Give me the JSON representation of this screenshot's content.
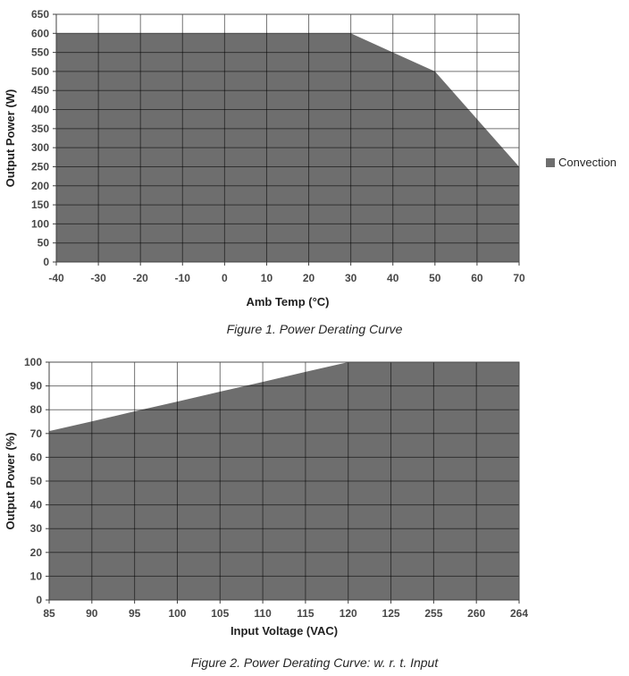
{
  "page": {
    "background": "#ffffff"
  },
  "figure1": {
    "caption": "Figure 1. Power Derating Curve",
    "legend_label": "Convection",
    "legend_swatch_color": "#6e6e6e"
  },
  "figure2": {
    "caption": "Figure 2. Power Derating Curve: w. r. t. Input"
  },
  "colors": {
    "area_fill": "#6e6e6e",
    "gridline": "rgba(0,0,0,0.55)",
    "plot_border": "#4d4d4d",
    "axis_line": "#404040",
    "tick_label": "#474747",
    "axis_title": "#1f1f1f",
    "caption_text": "#262626"
  },
  "chart_data": [
    {
      "type": "area",
      "title": "",
      "xlabel": "Amb Temp (°C)",
      "ylabel": "Output Power (W)",
      "categories": [
        -40,
        -30,
        -20,
        -10,
        0,
        10,
        20,
        30,
        40,
        50,
        60,
        70
      ],
      "series": [
        {
          "name": "Convection",
          "values": [
            600,
            600,
            600,
            600,
            600,
            600,
            600,
            600,
            550,
            500,
            375,
            250
          ]
        }
      ],
      "ylim": [
        0,
        650
      ],
      "ytick_step": 50,
      "yticks": [
        0,
        50,
        100,
        150,
        200,
        250,
        300,
        350,
        400,
        450,
        500,
        550,
        600,
        650
      ],
      "grid": true,
      "legend_position": "right",
      "fill_color": "#6e6e6e"
    },
    {
      "type": "area",
      "title": "",
      "xlabel": "Input Voltage (VAC)",
      "ylabel": "Output Power (%)",
      "categories": [
        85,
        90,
        95,
        100,
        105,
        110,
        115,
        120,
        125,
        255,
        260,
        264
      ],
      "series": [
        {
          "name": "Output Power",
          "values": [
            71,
            75.1,
            79.3,
            83.4,
            87.6,
            91.7,
            95.9,
            100,
            100,
            100,
            100,
            100
          ]
        }
      ],
      "ylim": [
        0,
        100
      ],
      "ytick_step": 10,
      "yticks": [
        0,
        10,
        20,
        30,
        40,
        50,
        60,
        70,
        80,
        90,
        100
      ],
      "grid": true,
      "legend_position": "none",
      "fill_color": "#6e6e6e"
    }
  ]
}
